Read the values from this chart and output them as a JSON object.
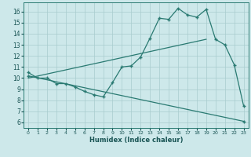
{
  "xlabel": "Humidex (Indice chaleur)",
  "bg_color": "#cde8ea",
  "grid_color": "#a8ccce",
  "line_color": "#2a7a72",
  "xlim": [
    -0.5,
    23.5
  ],
  "ylim": [
    5.5,
    16.8
  ],
  "yticks": [
    6,
    7,
    8,
    9,
    10,
    11,
    12,
    13,
    14,
    15,
    16
  ],
  "xticks": [
    0,
    1,
    2,
    3,
    4,
    5,
    6,
    7,
    8,
    9,
    10,
    11,
    12,
    13,
    14,
    15,
    16,
    17,
    18,
    19,
    20,
    21,
    22,
    23
  ],
  "curve1_x": [
    0,
    1,
    2,
    3,
    4,
    5,
    6,
    7,
    8,
    9,
    10,
    11,
    12,
    13,
    14,
    15,
    16,
    17,
    18,
    19,
    20,
    21,
    22,
    23
  ],
  "curve1_y": [
    10.5,
    10.0,
    10.0,
    9.5,
    9.5,
    9.2,
    8.8,
    8.5,
    8.3,
    9.6,
    11.0,
    11.1,
    11.9,
    13.6,
    15.4,
    15.3,
    16.3,
    15.7,
    15.5,
    16.2,
    13.5,
    13.0,
    11.2,
    7.5
  ],
  "curve2_x": [
    0,
    19
  ],
  "curve2_y": [
    10.0,
    13.5
  ],
  "curve3_x": [
    0,
    23
  ],
  "curve3_y": [
    10.2,
    6.1
  ],
  "marker_size": 3.5,
  "linewidth": 0.9
}
